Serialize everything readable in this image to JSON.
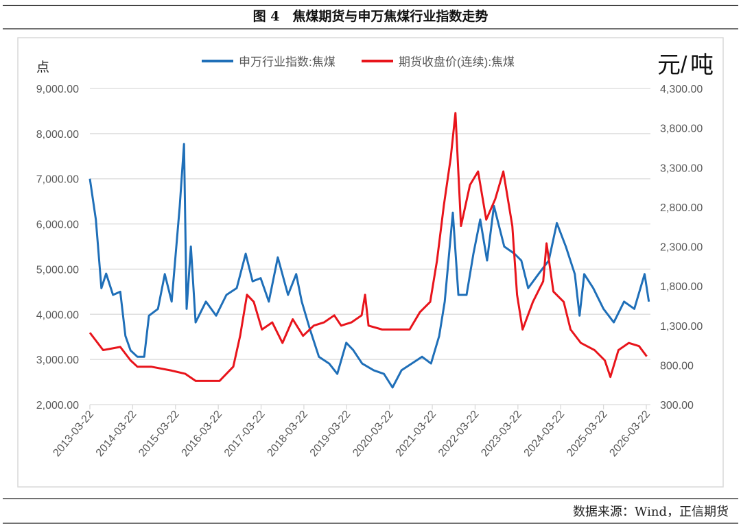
{
  "figure": {
    "title": "图 4　焦煤期货与申万焦煤行业指数走势",
    "source": "数据来源：Wind，正信期货"
  },
  "chart_data": {
    "type": "line",
    "title": "焦煤期货与申万焦煤行业指数走势",
    "y_left_label": "点",
    "y_right_label_1": "元/",
    "y_right_label_2": "吨",
    "y_left_range": [
      2000,
      9000
    ],
    "y_right_range": [
      300,
      4300
    ],
    "y_left_ticks": [
      "9,000.00",
      "8,000.00",
      "7,000.00",
      "6,000.00",
      "5,000.00",
      "4,000.00",
      "3,000.00",
      "2,000.00"
    ],
    "y_right_ticks": [
      "4,300.00",
      "3,800.00",
      "3,300.00",
      "2,800.00",
      "2,300.00",
      "1,800.00",
      "1,300.00",
      "800.00",
      "300.00"
    ],
    "x_ticks": [
      "2013-03-22",
      "2014-03-22",
      "2015-03-22",
      "2016-03-22",
      "2017-03-22",
      "2018-03-22",
      "2019-03-22",
      "2020-03-22",
      "2021-03-22",
      "2022-03-22",
      "2023-03-22",
      "2024-03-22",
      "2025-03-22",
      "2026-03-22"
    ],
    "x_range": [
      2013.22,
      2026.22
    ],
    "grid": "horizontal",
    "legend_position": "top",
    "series": [
      {
        "name": "申万行业指数:焦煤",
        "axis": "left",
        "color": "#1f6fb8",
        "x": [
          2013.22,
          2013.36,
          2013.49,
          2013.6,
          2013.76,
          2013.93,
          2014.05,
          2014.17,
          2014.33,
          2014.49,
          2014.6,
          2014.81,
          2014.97,
          2015.13,
          2015.32,
          2015.42,
          2015.48,
          2015.58,
          2015.69,
          2015.93,
          2016.17,
          2016.41,
          2016.65,
          2016.86,
          2017.02,
          2017.21,
          2017.4,
          2017.61,
          2017.85,
          2018.04,
          2018.17,
          2018.36,
          2018.57,
          2018.81,
          2019.0,
          2019.21,
          2019.37,
          2019.58,
          2019.85,
          2020.09,
          2020.29,
          2020.5,
          2020.74,
          2020.98,
          2021.19,
          2021.38,
          2021.51,
          2021.7,
          2021.83,
          2022.02,
          2022.18,
          2022.34,
          2022.5,
          2022.66,
          2022.9,
          2023.14,
          2023.3,
          2023.46,
          2023.7,
          2023.94,
          2024.13,
          2024.34,
          2024.55,
          2024.66,
          2024.77,
          2024.98,
          2025.22,
          2025.46,
          2025.7,
          2025.94,
          2026.18,
          2026.28
        ],
        "y": [
          7000,
          6100,
          4580,
          4900,
          4430,
          4500,
          3520,
          3200,
          3060,
          3060,
          3970,
          4120,
          4890,
          4280,
          6400,
          7770,
          4120,
          5500,
          3820,
          4280,
          3970,
          4430,
          4580,
          5340,
          4730,
          4800,
          4280,
          5260,
          4430,
          4890,
          4280,
          3670,
          3060,
          2910,
          2680,
          3370,
          3210,
          2910,
          2760,
          2680,
          2380,
          2760,
          2910,
          3060,
          2910,
          3520,
          4280,
          6250,
          4430,
          4430,
          5340,
          6100,
          5190,
          6400,
          5500,
          5340,
          5190,
          4580,
          4890,
          5190,
          6020,
          5500,
          4890,
          3970,
          4890,
          4580,
          4120,
          3820,
          4280,
          4120,
          4890,
          4280
        ]
      },
      {
        "name": "期货收盘价(连续):焦煤",
        "axis": "right",
        "color": "#e8141b",
        "x": [
          2013.22,
          2013.53,
          2013.93,
          2014.17,
          2014.33,
          2014.65,
          2015.13,
          2015.45,
          2015.69,
          2015.93,
          2016.25,
          2016.57,
          2016.73,
          2016.89,
          2017.05,
          2017.24,
          2017.48,
          2017.72,
          2017.96,
          2018.2,
          2018.45,
          2018.69,
          2018.93,
          2019.09,
          2019.33,
          2019.57,
          2019.65,
          2019.73,
          2020.05,
          2020.37,
          2020.69,
          2020.93,
          2021.17,
          2021.33,
          2021.49,
          2021.65,
          2021.76,
          2021.89,
          2022.1,
          2022.29,
          2022.48,
          2022.69,
          2022.88,
          2023.09,
          2023.2,
          2023.33,
          2023.57,
          2023.81,
          2023.89,
          2024.05,
          2024.29,
          2024.45,
          2024.69,
          2025.01,
          2025.25,
          2025.38,
          2025.57,
          2025.81,
          2026.05,
          2026.23
        ],
        "y": [
          1210,
          990,
          1030,
          860,
          780,
          780,
          730,
          690,
          600,
          600,
          600,
          780,
          1170,
          1690,
          1600,
          1250,
          1340,
          1080,
          1380,
          1170,
          1300,
          1340,
          1430,
          1300,
          1340,
          1430,
          1690,
          1300,
          1250,
          1250,
          1250,
          1470,
          1600,
          2120,
          2820,
          3420,
          3990,
          2560,
          3080,
          3250,
          2640,
          2900,
          3250,
          2560,
          1690,
          1250,
          1600,
          1860,
          2340,
          1730,
          1600,
          1250,
          1080,
          990,
          860,
          650,
          990,
          1080,
          1040,
          910
        ]
      }
    ]
  }
}
